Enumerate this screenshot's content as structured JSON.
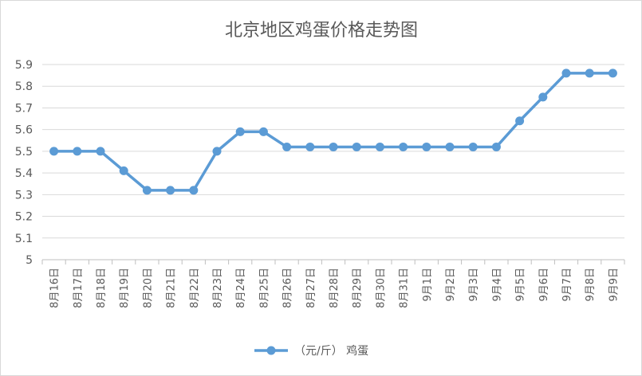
{
  "chart_data": {
    "type": "line",
    "title": "北京地区鸡蛋价格走势图",
    "xlabel": "",
    "ylabel": "",
    "ylim": [
      5,
      5.9
    ],
    "y_ticks": [
      "5",
      "5.1",
      "5.2",
      "5.3",
      "5.4",
      "5.5",
      "5.6",
      "5.7",
      "5.8",
      "5.9"
    ],
    "grid": true,
    "legend_position": "bottom",
    "categories": [
      "8月16日",
      "8月17日",
      "8月18日",
      "8月19日",
      "8月20日",
      "8月21日",
      "8月22日",
      "8月23日",
      "8月24日",
      "8月25日",
      "8月26日",
      "8月27日",
      "8月28日",
      "8月29日",
      "8月30日",
      "8月31日",
      "9月1日",
      "9月2日",
      "9月3日",
      "9月4日",
      "9月5日",
      "9月6日",
      "9月7日",
      "9月8日",
      "9月9日"
    ],
    "series": [
      {
        "name": "（元/斤） 鸡蛋",
        "color": "#5b9bd5",
        "values": [
          5.5,
          5.5,
          5.5,
          5.41,
          5.32,
          5.32,
          5.32,
          5.5,
          5.59,
          5.59,
          5.52,
          5.52,
          5.52,
          5.52,
          5.52,
          5.52,
          5.52,
          5.52,
          5.52,
          5.52,
          5.64,
          5.75,
          5.86,
          5.86,
          5.86
        ]
      }
    ]
  }
}
